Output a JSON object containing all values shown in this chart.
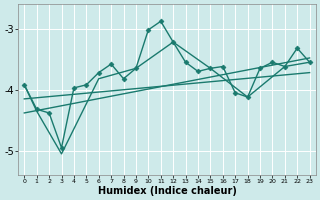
{
  "xlabel": "Humidex (Indice chaleur)",
  "bg_color": "#ceeaea",
  "grid_color": "#ffffff",
  "line_color": "#1a7a6e",
  "xlim": [
    -0.5,
    23.5
  ],
  "ylim": [
    -5.4,
    -2.6
  ],
  "yticks": [
    -5,
    -4,
    -3
  ],
  "xticks": [
    0,
    1,
    2,
    3,
    4,
    5,
    6,
    7,
    8,
    9,
    10,
    11,
    12,
    13,
    14,
    15,
    16,
    17,
    18,
    19,
    20,
    21,
    22,
    23
  ],
  "series": [
    {
      "x": [
        0,
        1,
        2,
        3,
        4,
        5,
        6,
        7,
        8,
        9,
        10,
        11,
        12,
        13,
        14,
        15,
        16,
        17,
        18,
        19,
        20,
        21,
        22,
        23
      ],
      "y": [
        -3.92,
        -4.32,
        -4.38,
        -4.95,
        -3.97,
        -3.92,
        -3.72,
        -3.58,
        -3.82,
        -3.65,
        -3.02,
        -2.88,
        -3.22,
        -3.55,
        -3.7,
        -3.65,
        -3.62,
        -4.05,
        -4.12,
        -3.65,
        -3.55,
        -3.62,
        -3.32,
        -3.55
      ],
      "marker": "D",
      "markersize": 2.5,
      "linewidth": 1.0
    },
    {
      "x": [
        0,
        1,
        3,
        6,
        9,
        12,
        15,
        18,
        21,
        23
      ],
      "y": [
        -3.92,
        -4.35,
        -5.05,
        -3.82,
        -3.65,
        -3.22,
        -3.65,
        -4.12,
        -3.62,
        -3.55
      ],
      "marker": null,
      "markersize": 0,
      "linewidth": 1.0
    },
    {
      "x": [
        0,
        23
      ],
      "y": [
        -4.38,
        -3.48
      ],
      "marker": null,
      "markersize": 0,
      "linewidth": 1.0
    },
    {
      "x": [
        0,
        23
      ],
      "y": [
        -4.15,
        -3.72
      ],
      "marker": null,
      "markersize": 0,
      "linewidth": 1.0
    }
  ]
}
